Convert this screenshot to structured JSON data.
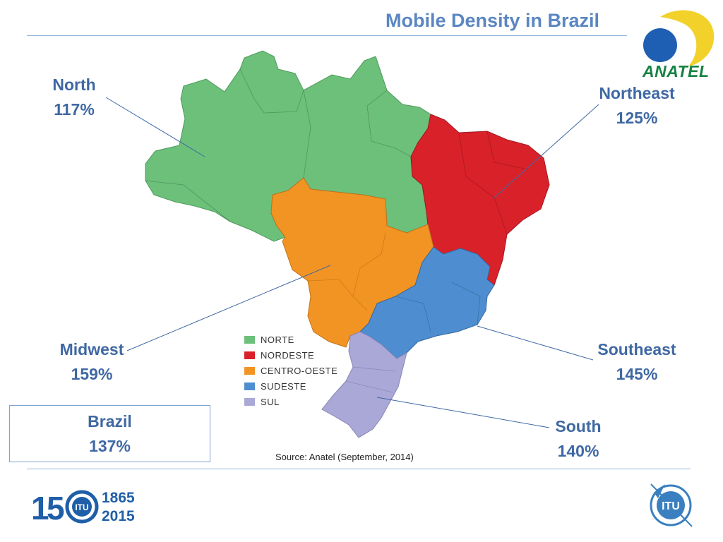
{
  "header": {
    "title": "Mobile Density in Brazil"
  },
  "logo": {
    "text": "ANATEL",
    "colors": {
      "yellow": "#f2d12b",
      "blue": "#1f5fb3",
      "green": "#168243"
    }
  },
  "regions": [
    {
      "key": "north",
      "name": "North",
      "value": "117%",
      "color": "#6cc07a"
    },
    {
      "key": "northeast",
      "name": "Northeast",
      "value": "125%",
      "color": "#d9212a"
    },
    {
      "key": "midwest",
      "name": "Midwest",
      "value": "159%",
      "color": "#f29423"
    },
    {
      "key": "southeast",
      "name": "Southeast",
      "value": "145%",
      "color": "#4e8ed0"
    },
    {
      "key": "south",
      "name": "South",
      "value": "140%",
      "color": "#aaa8d6"
    }
  ],
  "national": {
    "name": "Brazil",
    "value": "137%"
  },
  "legend": [
    {
      "label": "NORTE",
      "color": "#6cc07a"
    },
    {
      "label": "NORDESTE",
      "color": "#d9212a"
    },
    {
      "label": "CENTRO-OESTE",
      "color": "#f29423"
    },
    {
      "label": "SUDESTE",
      "color": "#4e8ed0"
    },
    {
      "label": "SUL",
      "color": "#aaa8d6"
    }
  ],
  "source": "Source: Anatel (September, 2014)",
  "footer": {
    "logo_150": {
      "years_top": "1865",
      "years_bottom": "2015",
      "badge": "ITU"
    },
    "itu_logo": "ITU"
  }
}
